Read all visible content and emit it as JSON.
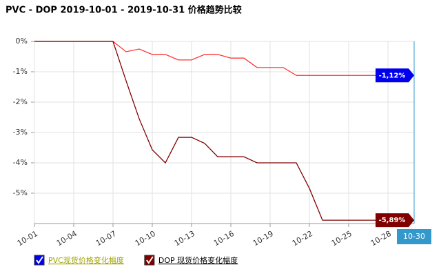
{
  "chart_data": {
    "type": "line",
    "title": "PVC - DOP 2019-10-01 - 2019-10-31 价格趋势比较",
    "categories": [
      "10-01",
      null,
      null,
      "10-04",
      null,
      null,
      "10-07",
      null,
      null,
      "10-10",
      null,
      null,
      "10-13",
      null,
      null,
      "10-16",
      null,
      null,
      "10-19",
      null,
      null,
      "10-22",
      null,
      null,
      "10-25",
      null,
      null,
      "10-28",
      null,
      "10-30"
    ],
    "series": [
      {
        "name": "PVC现货价格变化幅度",
        "color": "#ff3333",
        "label_color": "#0000ee",
        "values": [
          0,
          0,
          0,
          0,
          0,
          0,
          0,
          -0.34,
          -0.25,
          -0.43,
          -0.43,
          -0.61,
          -0.61,
          -0.43,
          -0.43,
          -0.55,
          -0.55,
          -0.86,
          -0.86,
          -0.86,
          -1.12,
          -1.12,
          -1.12,
          -1.12,
          -1.12,
          -1.12,
          -1.12,
          -1.12,
          -1.12,
          -1.12
        ],
        "value_labels": [
          null,
          null,
          null,
          null,
          null,
          null,
          null,
          null,
          null,
          null,
          null,
          null,
          null,
          null,
          null,
          null,
          null,
          null,
          null,
          null,
          null,
          null,
          null,
          null,
          null,
          null,
          null,
          null,
          null,
          "-1,12%"
        ]
      },
      {
        "name": "DOP 现货价格变化幅度",
        "color": "#800000",
        "label_color": "#800000",
        "values": [
          0,
          0,
          0,
          0,
          0,
          0,
          0,
          -1.3,
          -2.55,
          -3.57,
          -4.0,
          -3.16,
          -3.16,
          -3.36,
          -3.8,
          -3.8,
          -3.8,
          -4.0,
          -4.0,
          -4.0,
          -4.0,
          -4.84,
          -5.89,
          -5.89,
          -5.89,
          -5.89,
          -5.89,
          -5.89,
          -5.89,
          -5.89
        ],
        "value_labels": [
          null,
          null,
          null,
          null,
          null,
          null,
          null,
          null,
          null,
          null,
          null,
          null,
          null,
          null,
          null,
          null,
          null,
          null,
          null,
          null,
          null,
          null,
          null,
          null,
          null,
          null,
          null,
          null,
          null,
          "-5,89%"
        ]
      }
    ],
    "ylim": [
      -6,
      0
    ],
    "yticks": [
      {
        "value": 0,
        "label": "0%"
      },
      {
        "value": -1,
        "label": "-1%"
      },
      {
        "value": -2,
        "label": "-2%"
      },
      {
        "value": -3,
        "label": "-3%"
      },
      {
        "value": -4,
        "label": "-4%"
      },
      {
        "value": -5,
        "label": "-5%"
      }
    ],
    "grid": true
  }
}
